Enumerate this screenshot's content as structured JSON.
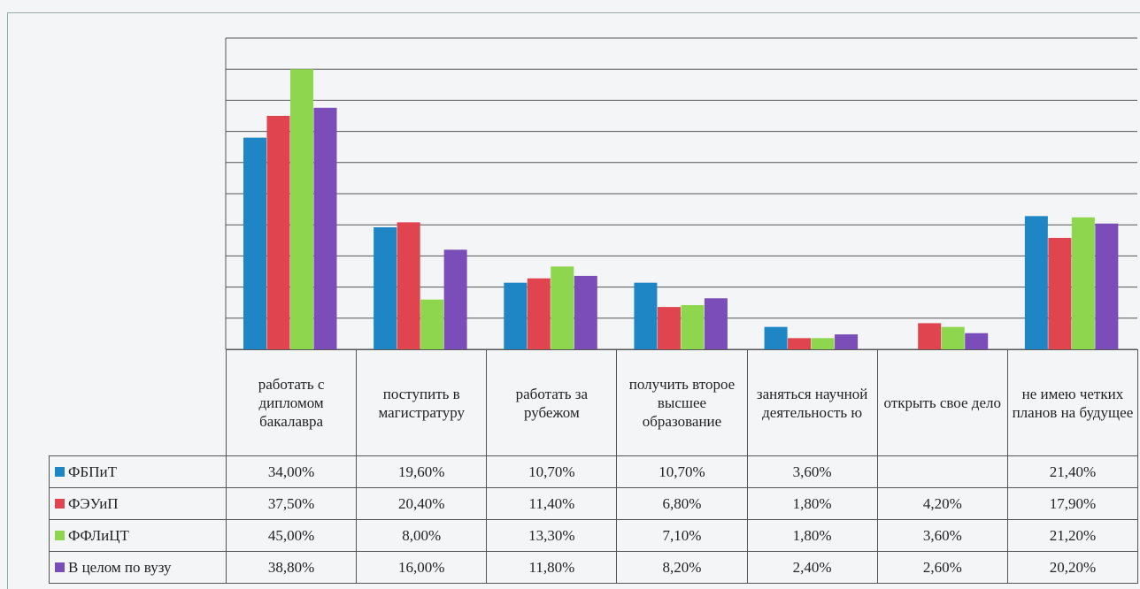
{
  "chart_data": {
    "type": "bar",
    "categories": [
      "работать с дипломом бакалавра",
      "поступить в магистратуру",
      "работать за рубежом",
      "получить второе высшее образование",
      "заняться научной деятельность ю",
      "открыть свое дело",
      "не имею четких планов на будущее"
    ],
    "series": [
      {
        "name": "ФБПиТ",
        "color": "#1f86c6",
        "values": [
          34.0,
          19.6,
          10.7,
          10.7,
          3.6,
          null,
          21.4
        ],
        "value_labels": [
          "34,00%",
          "19,60%",
          "10,70%",
          "10,70%",
          "3,60%",
          null,
          "21,40%"
        ]
      },
      {
        "name": "ФЭУиП",
        "color": "#e0444f",
        "values": [
          37.5,
          20.4,
          11.4,
          6.8,
          1.8,
          4.2,
          17.9
        ],
        "value_labels": [
          "37,50%",
          "20,40%",
          "11,40%",
          "6,80%",
          "1,80%",
          "4,20%",
          "17,90%"
        ]
      },
      {
        "name": "ФФЛиЦТ",
        "color": "#8ed64e",
        "values": [
          45.0,
          8.0,
          13.3,
          7.1,
          1.8,
          3.6,
          21.2
        ],
        "value_labels": [
          "45,00%",
          "8,00%",
          "13,30%",
          "7,10%",
          "1,80%",
          "3,60%",
          "21,20%"
        ]
      },
      {
        "name": "В целом по вузу",
        "color": "#7b4db8",
        "values": [
          38.8,
          16.0,
          11.8,
          8.2,
          2.4,
          2.6,
          20.2
        ],
        "value_labels": [
          "38,80%",
          "16,00%",
          "11,80%",
          "8,20%",
          "2,40%",
          "2,60%",
          "20,20%"
        ]
      }
    ],
    "ylim": [
      0,
      50
    ],
    "yticks": [
      0,
      5,
      10,
      15,
      20,
      25,
      30,
      35,
      40,
      45,
      50
    ],
    "grid": true
  }
}
